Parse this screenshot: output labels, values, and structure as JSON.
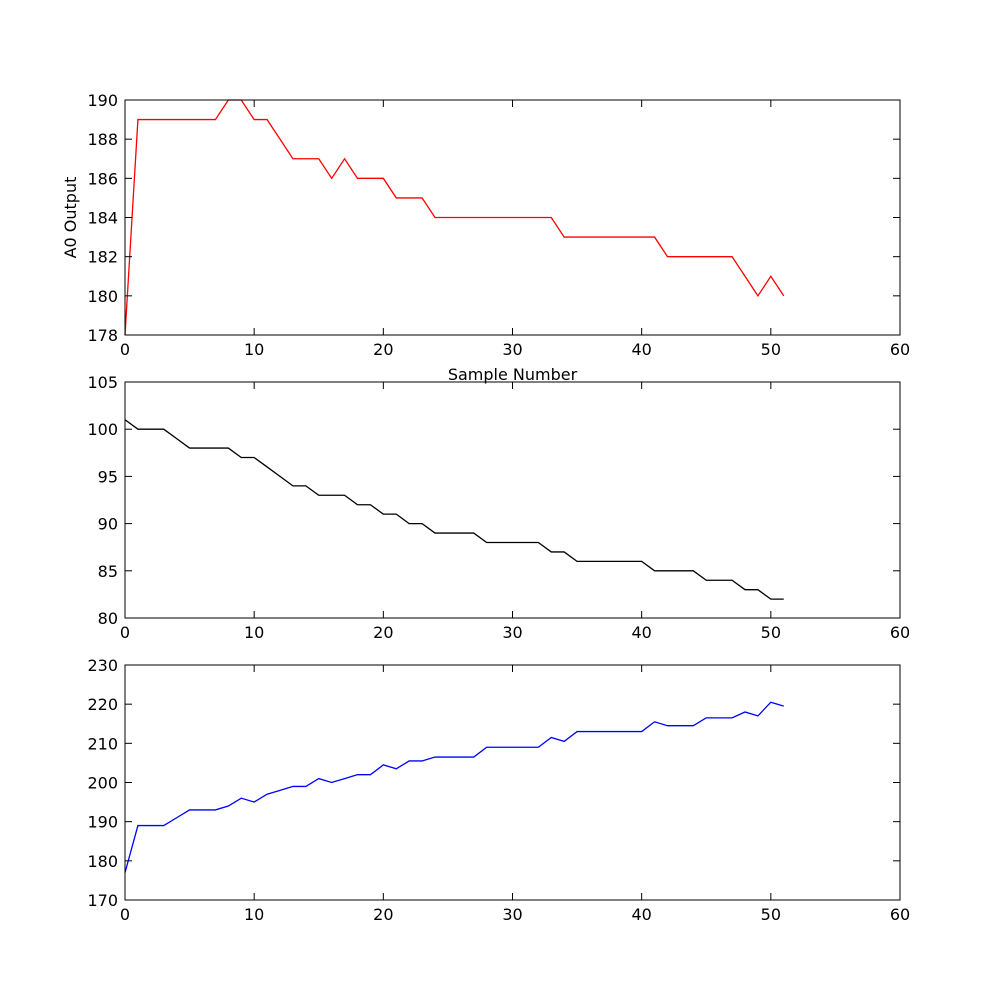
{
  "chart_data": [
    {
      "type": "line",
      "title": "",
      "xlabel": "Sample Number",
      "ylabel": "A0 Output",
      "xlim": [
        0,
        60
      ],
      "ylim": [
        178,
        190
      ],
      "xticks": [
        0,
        10,
        20,
        30,
        40,
        50,
        60
      ],
      "yticks": [
        178,
        180,
        182,
        184,
        186,
        188,
        190
      ],
      "grid": false,
      "series": [
        {
          "color": "#ff0000",
          "x": [
            0,
            1,
            2,
            3,
            4,
            5,
            6,
            7,
            8,
            9,
            10,
            11,
            12,
            13,
            14,
            15,
            16,
            17,
            18,
            19,
            20,
            21,
            22,
            23,
            24,
            25,
            26,
            27,
            28,
            29,
            30,
            31,
            32,
            33,
            34,
            35,
            36,
            37,
            38,
            39,
            40,
            41,
            42,
            43,
            44,
            45,
            46,
            47,
            48,
            49,
            50,
            51
          ],
          "y": [
            178,
            189,
            189,
            189,
            189,
            189,
            189,
            189,
            190,
            190,
            189,
            189,
            188,
            187,
            187,
            187,
            186,
            187,
            186,
            186,
            186,
            185,
            185,
            185,
            184,
            184,
            184,
            184,
            184,
            184,
            184,
            184,
            184,
            184,
            183,
            183,
            183,
            183,
            183,
            183,
            183,
            183,
            182,
            182,
            182,
            182,
            182,
            182,
            181,
            180,
            181,
            180
          ]
        }
      ]
    },
    {
      "type": "line",
      "title": "",
      "xlabel": "",
      "ylabel": "",
      "xlim": [
        0,
        60
      ],
      "ylim": [
        80,
        105
      ],
      "xticks": [
        0,
        10,
        20,
        30,
        40,
        50,
        60
      ],
      "yticks": [
        80,
        85,
        90,
        95,
        100,
        105
      ],
      "grid": false,
      "series": [
        {
          "color": "#000000",
          "x": [
            0,
            1,
            2,
            3,
            4,
            5,
            6,
            7,
            8,
            9,
            10,
            11,
            12,
            13,
            14,
            15,
            16,
            17,
            18,
            19,
            20,
            21,
            22,
            23,
            24,
            25,
            26,
            27,
            28,
            29,
            30,
            31,
            32,
            33,
            34,
            35,
            36,
            37,
            38,
            39,
            40,
            41,
            42,
            43,
            44,
            45,
            46,
            47,
            48,
            49,
            50,
            51
          ],
          "y": [
            101,
            100,
            100,
            100,
            99,
            98,
            98,
            98,
            98,
            97,
            97,
            96,
            95,
            94,
            94,
            93,
            93,
            93,
            92,
            92,
            91,
            91,
            90,
            90,
            89,
            89,
            89,
            89,
            88,
            88,
            88,
            88,
            88,
            87,
            87,
            86,
            86,
            86,
            86,
            86,
            86,
            85,
            85,
            85,
            85,
            84,
            84,
            84,
            83,
            83,
            82,
            82
          ]
        }
      ]
    },
    {
      "type": "line",
      "title": "",
      "xlabel": "",
      "ylabel": "",
      "xlim": [
        0,
        60
      ],
      "ylim": [
        170,
        230
      ],
      "xticks": [
        0,
        10,
        20,
        30,
        40,
        50,
        60
      ],
      "yticks": [
        170,
        180,
        190,
        200,
        210,
        220,
        230
      ],
      "grid": false,
      "series": [
        {
          "color": "#0000ff",
          "x": [
            0,
            1,
            2,
            3,
            4,
            5,
            6,
            7,
            8,
            9,
            10,
            11,
            12,
            13,
            14,
            15,
            16,
            17,
            18,
            19,
            20,
            21,
            22,
            23,
            24,
            25,
            26,
            27,
            28,
            29,
            30,
            31,
            32,
            33,
            34,
            35,
            36,
            37,
            38,
            39,
            40,
            41,
            42,
            43,
            44,
            45,
            46,
            47,
            48,
            49,
            50,
            51
          ],
          "y": [
            177,
            189,
            189,
            189,
            191,
            193,
            193,
            193,
            194,
            196,
            195,
            197,
            198,
            199,
            199,
            201,
            200,
            201,
            202,
            202,
            204.5,
            203.5,
            205.5,
            205.5,
            206.5,
            206.5,
            206.5,
            206.5,
            209,
            209,
            209,
            209,
            209,
            211.5,
            210.5,
            213,
            213,
            213,
            213,
            213,
            213,
            215.5,
            214.5,
            214.5,
            214.5,
            216.5,
            216.5,
            216.5,
            218,
            217,
            220.5,
            219.5
          ]
        }
      ]
    }
  ]
}
